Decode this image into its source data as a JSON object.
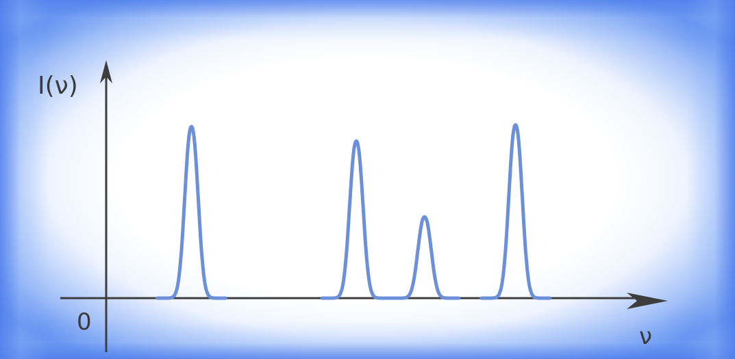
{
  "chart_data": {
    "type": "line",
    "ylabel": "I(ν)",
    "xlabel": "ν",
    "origin_label": "0",
    "grid": false,
    "legend": "none",
    "line_color": "#6b8fd8",
    "axis_color": "#3d3d3d",
    "xlim": [
      0,
      10
    ],
    "ylim": [
      0,
      1
    ],
    "series": [
      {
        "peaks": [
          {
            "center": 1.5,
            "height": 0.95
          },
          {
            "center": 4.4,
            "height": 0.87
          },
          {
            "center": 5.6,
            "height": 0.45
          },
          {
            "center": 7.2,
            "height": 0.96
          }
        ]
      }
    ]
  }
}
